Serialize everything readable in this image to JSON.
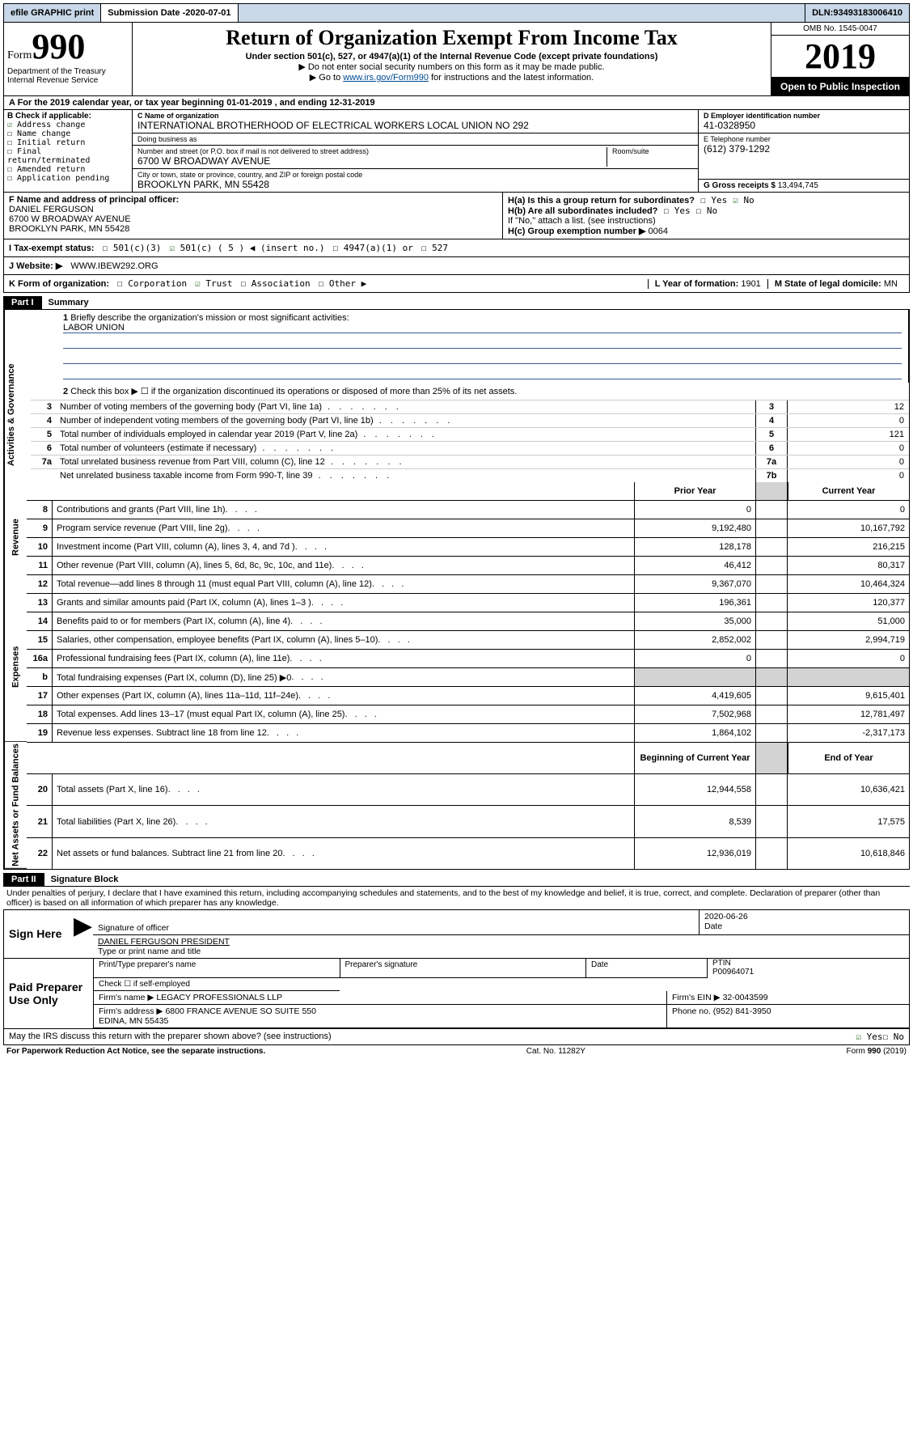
{
  "topbar": {
    "efile": "efile GRAPHIC print",
    "subdate_label": "Submission Date - ",
    "subdate": "2020-07-01",
    "dln_label": "DLN: ",
    "dln": "93493183006410"
  },
  "header": {
    "form_word": "Form",
    "form_num": "990",
    "dept": "Department of the Treasury\nInternal Revenue Service",
    "title": "Return of Organization Exempt From Income Tax",
    "subtitle": "Under section 501(c), 527, or 4947(a)(1) of the Internal Revenue Code (except private foundations)",
    "instr1": "Do not enter social security numbers on this form as it may be made public.",
    "instr2_pre": "Go to ",
    "instr2_link": "www.irs.gov/Form990",
    "instr2_post": " for instructions and the latest information.",
    "omb": "OMB No. 1545-0047",
    "year": "2019",
    "open": "Open to Public Inspection"
  },
  "taxyear": {
    "line_a": "A For the 2019 calendar year, or tax year beginning 01-01-2019 , and ending 12-31-2019"
  },
  "box_b": {
    "label": "B Check if applicable:",
    "items": [
      {
        "label": "Address change",
        "checked": true
      },
      {
        "label": "Name change",
        "checked": false
      },
      {
        "label": "Initial return",
        "checked": false
      },
      {
        "label": "Final return/terminated",
        "checked": false
      },
      {
        "label": "Amended return",
        "checked": false
      },
      {
        "label": "Application pending",
        "checked": false
      }
    ]
  },
  "box_c": {
    "name_label": "C Name of organization",
    "name": "INTERNATIONAL BROTHERHOOD OF ELECTRICAL WORKERS LOCAL UNION NO 292",
    "dba_label": "Doing business as",
    "dba": "",
    "addr_label": "Number and street (or P.O. box if mail is not delivered to street address)",
    "room_label": "Room/suite",
    "addr": "6700 W BROADWAY AVENUE",
    "city_label": "City or town, state or province, country, and ZIP or foreign postal code",
    "city": "BROOKLYN PARK, MN  55428"
  },
  "box_de": {
    "ein_label": "D Employer identification number",
    "ein": "41-0328950",
    "phone_label": "E Telephone number",
    "phone": "(612) 379-1292",
    "gross_label": "G Gross receipts $ ",
    "gross": "13,494,745"
  },
  "box_f": {
    "label": "F Name and address of principal officer:",
    "name": "DANIEL FERGUSON",
    "addr1": "6700 W BROADWAY AVENUE",
    "addr2": "BROOKLYN PARK, MN  55428"
  },
  "box_h": {
    "ha": "H(a) Is this a group return for subordinates?",
    "ha_yes": false,
    "ha_no": true,
    "hb": "H(b) Are all subordinates included?",
    "hb_note": "If \"No,\" attach a list. (see instructions)",
    "hc": "H(c) Group exemption number ▶",
    "hc_val": "0064"
  },
  "box_i": {
    "label": "I Tax-exempt status:",
    "c3": false,
    "c5_checked": true,
    "c5_label": "501(c) ( 5 ) ◀ (insert no.)",
    "a1": "4947(a)(1) or",
    "s527": "527"
  },
  "box_j": {
    "label": "J Website: ▶",
    "val": "WWW.IBEW292.ORG"
  },
  "box_k": {
    "label": "K Form of organization:",
    "corp": false,
    "trust": true,
    "assoc": false,
    "other": false,
    "other_arrow": "Other ▶",
    "l_label": "L Year of formation: ",
    "l_val": "1901",
    "m_label": "M State of legal domicile: ",
    "m_val": "MN"
  },
  "part1": {
    "header": "Part I",
    "title": "Summary",
    "q1": "Briefly describe the organization's mission or most significant activities:",
    "q1_val": "LABOR UNION",
    "q2": "Check this box ▶ ☐ if the organization discontinued its operations or disposed of more than 25% of its net assets.",
    "tabs": {
      "gov": "Activities & Governance",
      "rev": "Revenue",
      "exp": "Expenses",
      "net": "Net Assets or Fund Balances"
    },
    "lines_single": [
      {
        "n": "3",
        "desc": "Number of voting members of the governing body (Part VI, line 1a)",
        "box": "3",
        "val": "12"
      },
      {
        "n": "4",
        "desc": "Number of independent voting members of the governing body (Part VI, line 1b)",
        "box": "4",
        "val": "0"
      },
      {
        "n": "5",
        "desc": "Total number of individuals employed in calendar year 2019 (Part V, line 2a)",
        "box": "5",
        "val": "121"
      },
      {
        "n": "6",
        "desc": "Total number of volunteers (estimate if necessary)",
        "box": "6",
        "val": "0"
      },
      {
        "n": "7a",
        "desc": "Total unrelated business revenue from Part VIII, column (C), line 12",
        "box": "7a",
        "val": "0"
      },
      {
        "n": "",
        "desc": "Net unrelated business taxable income from Form 990-T, line 39",
        "box": "7b",
        "val": "0"
      }
    ],
    "col_py": "Prior Year",
    "col_cy": "Current Year",
    "col_boy": "Beginning of Current Year",
    "col_eoy": "End of Year",
    "lines_double": [
      {
        "n": "8",
        "desc": "Contributions and grants (Part VIII, line 1h)",
        "py": "0",
        "cy": "0",
        "section": "rev"
      },
      {
        "n": "9",
        "desc": "Program service revenue (Part VIII, line 2g)",
        "py": "9,192,480",
        "cy": "10,167,792",
        "section": "rev"
      },
      {
        "n": "10",
        "desc": "Investment income (Part VIII, column (A), lines 3, 4, and 7d )",
        "py": "128,178",
        "cy": "216,215",
        "section": "rev"
      },
      {
        "n": "11",
        "desc": "Other revenue (Part VIII, column (A), lines 5, 6d, 8c, 9c, 10c, and 11e)",
        "py": "46,412",
        "cy": "80,317",
        "section": "rev"
      },
      {
        "n": "12",
        "desc": "Total revenue—add lines 8 through 11 (must equal Part VIII, column (A), line 12)",
        "py": "9,367,070",
        "cy": "10,464,324",
        "section": "rev"
      },
      {
        "n": "13",
        "desc": "Grants and similar amounts paid (Part IX, column (A), lines 1–3 )",
        "py": "196,361",
        "cy": "120,377",
        "section": "exp"
      },
      {
        "n": "14",
        "desc": "Benefits paid to or for members (Part IX, column (A), line 4)",
        "py": "35,000",
        "cy": "51,000",
        "section": "exp"
      },
      {
        "n": "15",
        "desc": "Salaries, other compensation, employee benefits (Part IX, column (A), lines 5–10)",
        "py": "2,852,002",
        "cy": "2,994,719",
        "section": "exp"
      },
      {
        "n": "16a",
        "desc": "Professional fundraising fees (Part IX, column (A), line 11e)",
        "py": "0",
        "cy": "0",
        "section": "exp"
      },
      {
        "n": "b",
        "desc": "Total fundraising expenses (Part IX, column (D), line 25) ▶0",
        "py": "",
        "cy": "",
        "section": "exp",
        "shade": true
      },
      {
        "n": "17",
        "desc": "Other expenses (Part IX, column (A), lines 11a–11d, 11f–24e)",
        "py": "4,419,605",
        "cy": "9,615,401",
        "section": "exp"
      },
      {
        "n": "18",
        "desc": "Total expenses. Add lines 13–17 (must equal Part IX, column (A), line 25)",
        "py": "7,502,968",
        "cy": "12,781,497",
        "section": "exp"
      },
      {
        "n": "19",
        "desc": "Revenue less expenses. Subtract line 18 from line 12",
        "py": "1,864,102",
        "cy": "-2,317,173",
        "section": "exp"
      },
      {
        "n": "20",
        "desc": "Total assets (Part X, line 16)",
        "py": "12,944,558",
        "cy": "10,636,421",
        "section": "net"
      },
      {
        "n": "21",
        "desc": "Total liabilities (Part X, line 26)",
        "py": "8,539",
        "cy": "17,575",
        "section": "net"
      },
      {
        "n": "22",
        "desc": "Net assets or fund balances. Subtract line 21 from line 20",
        "py": "12,936,019",
        "cy": "10,618,846",
        "section": "net"
      }
    ]
  },
  "part2": {
    "header": "Part II",
    "title": "Signature Block",
    "perjury": "Under penalties of perjury, I declare that I have examined this return, including accompanying schedules and statements, and to the best of my knowledge and belief, it is true, correct, and complete. Declaration of preparer (other than officer) is based on all information of which preparer has any knowledge.",
    "sign_here": "Sign Here",
    "sig_officer": "Signature of officer",
    "date_label": "Date",
    "date": "2020-06-26",
    "name_title": "DANIEL FERGUSON PRESIDENT",
    "name_title_label": "Type or print name and title",
    "paid": "Paid Preparer Use Only",
    "prep_name_label": "Print/Type preparer's name",
    "prep_sig_label": "Preparer's signature",
    "prep_date_label": "Date",
    "self_emp": "Check ☐ if self-employed",
    "ptin_label": "PTIN",
    "ptin": "P00964071",
    "firm_name_label": "Firm's name ▶ ",
    "firm_name": "LEGACY PROFESSIONALS LLP",
    "firm_ein_label": "Firm's EIN ▶ ",
    "firm_ein": "32-0043599",
    "firm_addr_label": "Firm's address ▶ ",
    "firm_addr": "6800 FRANCE AVENUE SO SUITE 550\nEDINA, MN  55435",
    "phone_label": "Phone no. ",
    "phone": "(952) 841-3950",
    "discuss": "May the IRS discuss this return with the preparer shown above? (see instructions)",
    "discuss_yes": true
  },
  "footer": {
    "pra": "For Paperwork Reduction Act Notice, see the separate instructions.",
    "cat": "Cat. No. 11282Y",
    "form": "Form 990 (2019)"
  }
}
